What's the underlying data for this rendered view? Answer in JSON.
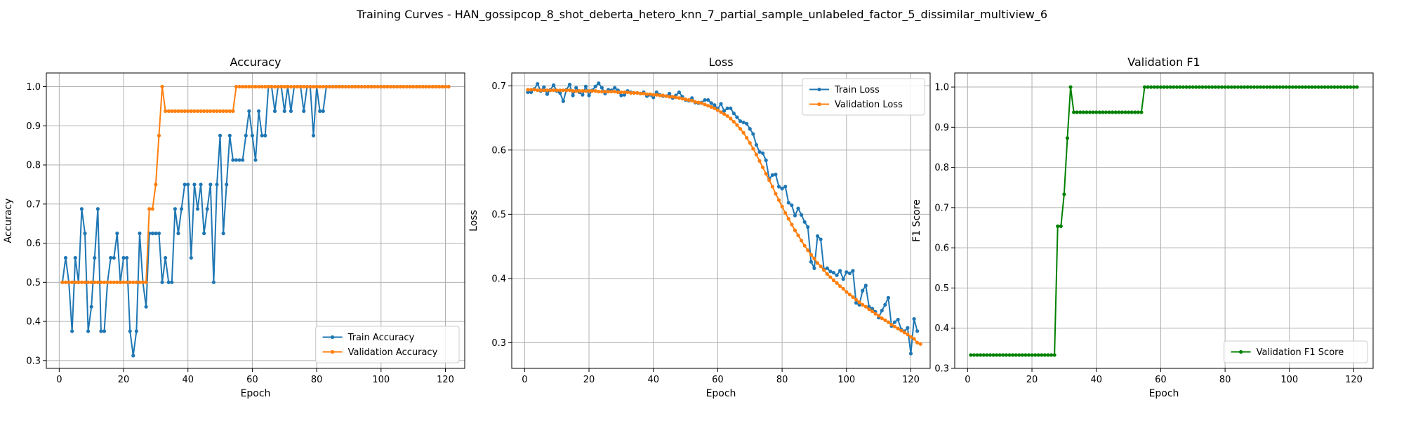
{
  "figure": {
    "suptitle": "Training Curves - HAN_gossipcop_8_shot_deberta_hetero_knn_7_partial_sample_unlabeled_factor_5_dissimilar_multiview_6"
  },
  "colors": {
    "train": "#1f77b4",
    "validation": "#ff7f0e",
    "f1": "#008000",
    "grid": "#b0b0b0"
  },
  "chart_data": [
    {
      "type": "line",
      "title": "Accuracy",
      "xlabel": "Epoch",
      "ylabel": "Accuracy",
      "xlim": [
        -4,
        126
      ],
      "ylim": [
        0.28,
        1.035
      ],
      "xticks": [
        0,
        20,
        40,
        60,
        80,
        100,
        120
      ],
      "yticks": [
        0.3,
        0.4,
        0.5,
        0.6,
        0.7,
        0.8,
        0.9,
        1.0
      ],
      "grid": true,
      "legend": "lower-right",
      "x_start": 1,
      "series": [
        {
          "name": "Train Accuracy",
          "color": "#1f77b4",
          "values": [
            0.5,
            0.5625,
            0.5,
            0.375,
            0.5625,
            0.5,
            0.6875,
            0.625,
            0.375,
            0.4375,
            0.5625,
            0.6875,
            0.375,
            0.375,
            0.5,
            0.5625,
            0.5625,
            0.625,
            0.5,
            0.5625,
            0.5625,
            0.375,
            0.3125,
            0.375,
            0.625,
            0.5,
            0.4375,
            0.625,
            0.625,
            0.625,
            0.625,
            0.5,
            0.5625,
            0.5,
            0.5,
            0.6875,
            0.625,
            0.6875,
            0.75,
            0.75,
            0.5625,
            0.75,
            0.6875,
            0.75,
            0.625,
            0.6875,
            0.75,
            0.5,
            0.75,
            0.875,
            0.625,
            0.75,
            0.875,
            0.8125,
            0.8125,
            0.8125,
            0.8125,
            0.875,
            0.9375,
            0.875,
            0.8125,
            0.9375,
            0.875,
            0.875,
            1.0,
            1.0,
            0.9375,
            1.0,
            1.0,
            0.9375,
            1.0,
            0.9375,
            1.0,
            1.0,
            1.0,
            0.9375,
            1.0,
            1.0,
            0.875,
            1.0,
            0.9375,
            0.9375,
            1.0,
            1.0,
            1.0,
            1.0,
            1.0,
            1.0,
            1.0,
            1.0,
            1.0,
            1.0,
            1.0,
            1.0,
            1.0,
            1.0,
            1.0,
            1.0,
            1.0,
            1.0,
            1.0,
            1.0,
            1.0,
            1.0,
            1.0,
            1.0,
            1.0,
            1.0,
            1.0,
            1.0,
            1.0,
            1.0,
            1.0,
            1.0,
            1.0,
            1.0,
            1.0,
            1.0,
            1.0,
            1.0,
            1.0
          ]
        },
        {
          "name": "Validation Accuracy",
          "color": "#ff7f0e",
          "values": [
            0.5,
            0.5,
            0.5,
            0.5,
            0.5,
            0.5,
            0.5,
            0.5,
            0.5,
            0.5,
            0.5,
            0.5,
            0.5,
            0.5,
            0.5,
            0.5,
            0.5,
            0.5,
            0.5,
            0.5,
            0.5,
            0.5,
            0.5,
            0.5,
            0.5,
            0.5,
            0.5,
            0.6875,
            0.6875,
            0.75,
            0.875,
            1.0,
            0.9375,
            0.9375,
            0.9375,
            0.9375,
            0.9375,
            0.9375,
            0.9375,
            0.9375,
            0.9375,
            0.9375,
            0.9375,
            0.9375,
            0.9375,
            0.9375,
            0.9375,
            0.9375,
            0.9375,
            0.9375,
            0.9375,
            0.9375,
            0.9375,
            0.9375,
            1.0,
            1.0,
            1.0,
            1.0,
            1.0,
            1.0,
            1.0,
            1.0,
            1.0,
            1.0,
            1.0,
            1.0,
            1.0,
            1.0,
            1.0,
            1.0,
            1.0,
            1.0,
            1.0,
            1.0,
            1.0,
            1.0,
            1.0,
            1.0,
            1.0,
            1.0,
            1.0,
            1.0,
            1.0,
            1.0,
            1.0,
            1.0,
            1.0,
            1.0,
            1.0,
            1.0,
            1.0,
            1.0,
            1.0,
            1.0,
            1.0,
            1.0,
            1.0,
            1.0,
            1.0,
            1.0,
            1.0,
            1.0,
            1.0,
            1.0,
            1.0,
            1.0,
            1.0,
            1.0,
            1.0,
            1.0,
            1.0,
            1.0,
            1.0,
            1.0,
            1.0,
            1.0,
            1.0,
            1.0,
            1.0,
            1.0,
            1.0
          ]
        }
      ]
    },
    {
      "type": "line",
      "title": "Loss",
      "xlabel": "Epoch",
      "ylabel": "Loss",
      "xlim": [
        -4,
        126
      ],
      "ylim": [
        0.26,
        0.72
      ],
      "xticks": [
        0,
        20,
        40,
        60,
        80,
        100,
        120
      ],
      "yticks": [
        0.3,
        0.4,
        0.5,
        0.6,
        0.7
      ],
      "grid": true,
      "legend": "upper-right",
      "x_start": 1,
      "series": [
        {
          "name": "Train Loss",
          "color": "#1f77b4",
          "values": [
            0.69,
            0.69,
            0.695,
            0.703,
            0.692,
            0.698,
            0.687,
            0.694,
            0.701,
            0.692,
            0.689,
            0.676,
            0.694,
            0.702,
            0.685,
            0.697,
            0.69,
            0.686,
            0.699,
            0.685,
            0.693,
            0.699,
            0.704,
            0.697,
            0.688,
            0.694,
            0.693,
            0.697,
            0.693,
            0.685,
            0.686,
            0.692,
            0.69,
            0.689,
            0.689,
            0.688,
            0.69,
            0.684,
            0.686,
            0.682,
            0.69,
            0.686,
            0.684,
            0.684,
            0.688,
            0.681,
            0.685,
            0.69,
            0.683,
            0.678,
            0.677,
            0.681,
            0.674,
            0.673,
            0.674,
            0.678,
            0.678,
            0.673,
            0.67,
            0.664,
            0.672,
            0.661,
            0.665,
            0.665,
            0.657,
            0.651,
            0.645,
            0.643,
            0.641,
            0.633,
            0.625,
            0.608,
            0.597,
            0.595,
            0.584,
            0.555,
            0.561,
            0.562,
            0.543,
            0.54,
            0.543,
            0.518,
            0.514,
            0.498,
            0.509,
            0.499,
            0.488,
            0.48,
            0.426,
            0.416,
            0.466,
            0.461,
            0.414,
            0.416,
            0.411,
            0.409,
            0.405,
            0.412,
            0.399,
            0.41,
            0.408,
            0.412,
            0.362,
            0.359,
            0.381,
            0.389,
            0.356,
            0.353,
            0.348,
            0.339,
            0.35,
            0.359,
            0.37,
            0.326,
            0.332,
            0.336,
            0.321,
            0.318,
            0.323,
            0.283,
            0.337,
            0.318
          ]
        },
        {
          "name": "Validation Loss",
          "color": "#ff7f0e",
          "values": [
            0.694,
            0.694,
            0.694,
            0.693,
            0.693,
            0.693,
            0.693,
            0.693,
            0.693,
            0.693,
            0.693,
            0.693,
            0.693,
            0.693,
            0.692,
            0.692,
            0.692,
            0.692,
            0.692,
            0.692,
            0.692,
            0.692,
            0.691,
            0.691,
            0.691,
            0.691,
            0.691,
            0.691,
            0.69,
            0.69,
            0.69,
            0.69,
            0.689,
            0.689,
            0.689,
            0.688,
            0.688,
            0.687,
            0.687,
            0.686,
            0.686,
            0.685,
            0.685,
            0.684,
            0.683,
            0.683,
            0.682,
            0.681,
            0.68,
            0.679,
            0.678,
            0.677,
            0.675,
            0.674,
            0.673,
            0.671,
            0.669,
            0.667,
            0.665,
            0.662,
            0.659,
            0.656,
            0.653,
            0.649,
            0.644,
            0.639,
            0.633,
            0.627,
            0.619,
            0.611,
            0.602,
            0.593,
            0.583,
            0.573,
            0.563,
            0.553,
            0.543,
            0.532,
            0.522,
            0.512,
            0.502,
            0.493,
            0.484,
            0.475,
            0.467,
            0.459,
            0.451,
            0.444,
            0.437,
            0.431,
            0.424,
            0.419,
            0.413,
            0.407,
            0.402,
            0.397,
            0.393,
            0.388,
            0.384,
            0.379,
            0.375,
            0.371,
            0.367,
            0.363,
            0.359,
            0.356,
            0.352,
            0.349,
            0.345,
            0.342,
            0.338,
            0.335,
            0.332,
            0.328,
            0.325,
            0.322,
            0.319,
            0.316,
            0.313,
            0.309,
            0.306,
            0.3,
            0.298
          ]
        }
      ]
    },
    {
      "type": "line",
      "title": "Validation F1",
      "xlabel": "Epoch",
      "ylabel": "F1 Score",
      "xlim": [
        -4,
        126
      ],
      "ylim": [
        0.3,
        1.035
      ],
      "xticks": [
        0,
        20,
        40,
        60,
        80,
        100,
        120
      ],
      "yticks": [
        0.3,
        0.4,
        0.5,
        0.6,
        0.7,
        0.8,
        0.9,
        1.0
      ],
      "grid": true,
      "legend": "lower-right",
      "x_start": 1,
      "series": [
        {
          "name": "Validation F1 Score",
          "color": "#008000",
          "values": [
            0.3333,
            0.3333,
            0.3333,
            0.3333,
            0.3333,
            0.3333,
            0.3333,
            0.3333,
            0.3333,
            0.3333,
            0.3333,
            0.3333,
            0.3333,
            0.3333,
            0.3333,
            0.3333,
            0.3333,
            0.3333,
            0.3333,
            0.3333,
            0.3333,
            0.3333,
            0.3333,
            0.3333,
            0.3333,
            0.3333,
            0.3333,
            0.6536,
            0.6536,
            0.7333,
            0.873,
            1.0,
            0.9373,
            0.9373,
            0.9373,
            0.9373,
            0.9373,
            0.9373,
            0.9373,
            0.9373,
            0.9373,
            0.9373,
            0.9373,
            0.9373,
            0.9373,
            0.9373,
            0.9373,
            0.9373,
            0.9373,
            0.9373,
            0.9373,
            0.9373,
            0.9373,
            0.9373,
            1.0,
            1.0,
            1.0,
            1.0,
            1.0,
            1.0,
            1.0,
            1.0,
            1.0,
            1.0,
            1.0,
            1.0,
            1.0,
            1.0,
            1.0,
            1.0,
            1.0,
            1.0,
            1.0,
            1.0,
            1.0,
            1.0,
            1.0,
            1.0,
            1.0,
            1.0,
            1.0,
            1.0,
            1.0,
            1.0,
            1.0,
            1.0,
            1.0,
            1.0,
            1.0,
            1.0,
            1.0,
            1.0,
            1.0,
            1.0,
            1.0,
            1.0,
            1.0,
            1.0,
            1.0,
            1.0,
            1.0,
            1.0,
            1.0,
            1.0,
            1.0,
            1.0,
            1.0,
            1.0,
            1.0,
            1.0,
            1.0,
            1.0,
            1.0,
            1.0,
            1.0,
            1.0,
            1.0,
            1.0,
            1.0,
            1.0,
            1.0
          ]
        }
      ]
    }
  ]
}
